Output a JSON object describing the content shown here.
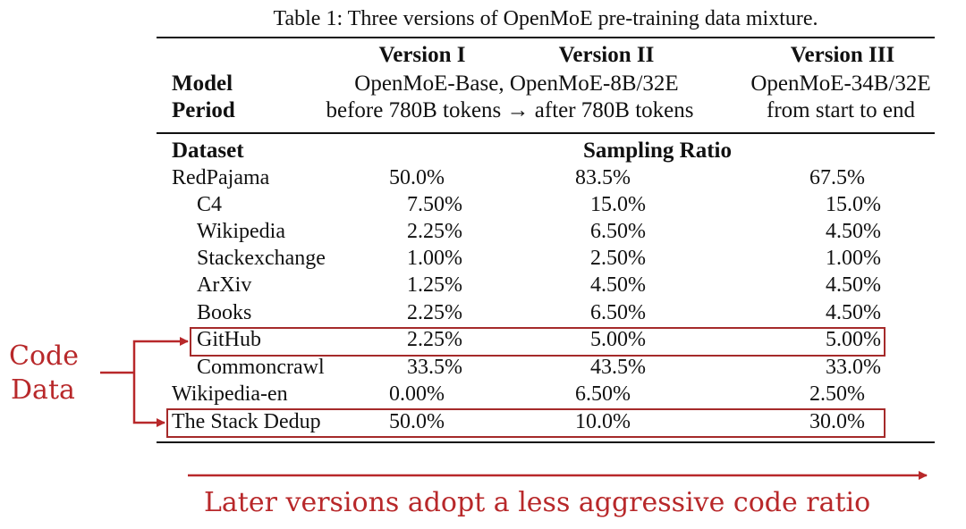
{
  "caption": "Table 1: Three versions of OpenMoE pre-training data mixture.",
  "header": {
    "versions": [
      "Version I",
      "Version II",
      "Version III"
    ],
    "model_label": "Model",
    "period_label": "Period",
    "model_v12": "OpenMoE-Base, OpenMoE-8B/32E",
    "model_v3": "OpenMoE-34B/32E",
    "period_v12": "before 780B tokens → after 780B tokens",
    "period_v3": "from start to end"
  },
  "dataset_label": "Dataset",
  "sampling_label": "Sampling Ratio",
  "rows": [
    {
      "name": "RedPajama",
      "v1": "50.0%",
      "v2": "83.5%",
      "v3": "67.5%"
    },
    {
      "name": "C4",
      "v1": "7.50%",
      "v2": "15.0%",
      "v3": "15.0%"
    },
    {
      "name": "Wikipedia",
      "v1": "2.25%",
      "v2": "6.50%",
      "v3": "4.50%"
    },
    {
      "name": "Stackexchange",
      "v1": "1.00%",
      "v2": "2.50%",
      "v3": "1.00%"
    },
    {
      "name": "ArXiv",
      "v1": "1.25%",
      "v2": "4.50%",
      "v3": "4.50%"
    },
    {
      "name": "Books",
      "v1": "2.25%",
      "v2": "6.50%",
      "v3": "4.50%"
    },
    {
      "name": "GitHub",
      "v1": "2.25%",
      "v2": "5.00%",
      "v3": "5.00%"
    },
    {
      "name": "Commoncrawl",
      "v1": "33.5%",
      "v2": "43.5%",
      "v3": "33.0%"
    },
    {
      "name": "Wikipedia-en",
      "v1": "0.00%",
      "v2": "6.50%",
      "v3": "2.50%"
    },
    {
      "name": "The Stack Dedup",
      "v1": "50.0%",
      "v2": "10.0%",
      "v3": "30.0%"
    }
  ],
  "annotation": {
    "code_label_line1": "Code",
    "code_label_line2": "Data",
    "bottom_note": "Later versions adopt a less aggressive code ratio",
    "accent_color": "#b8282a"
  }
}
